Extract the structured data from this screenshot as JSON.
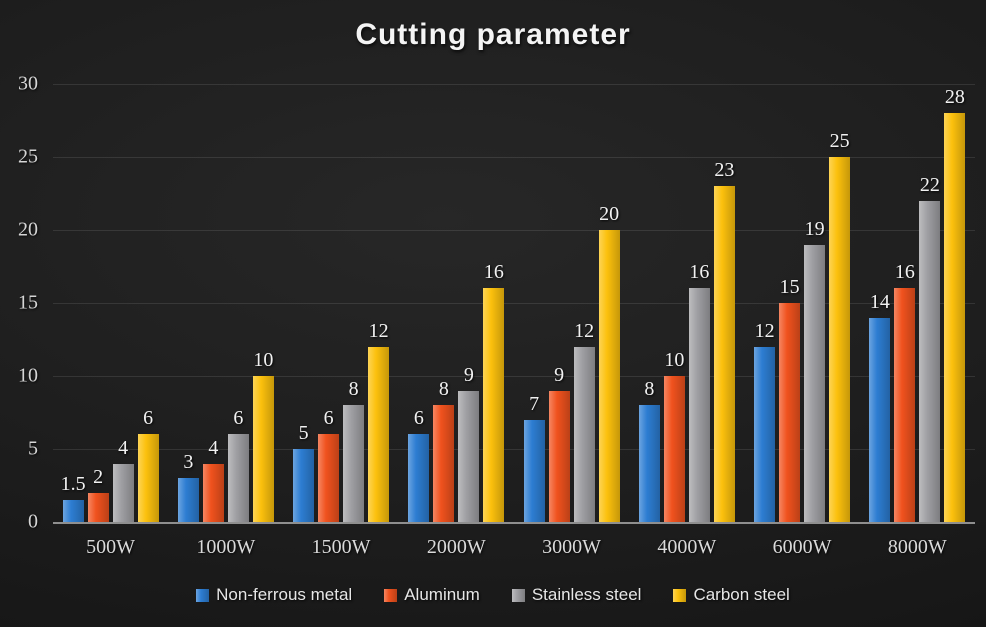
{
  "title": "Cutting parameter",
  "chart_data": {
    "type": "bar",
    "title": "Cutting parameter",
    "categories": [
      "500W",
      "1000W",
      "1500W",
      "2000W",
      "3000W",
      "4000W",
      "6000W",
      "8000W"
    ],
    "series": [
      {
        "name": "Non-ferrous metal",
        "color": "#2d7dd2",
        "values": [
          1.5,
          3,
          5,
          6,
          7,
          8,
          12,
          14
        ]
      },
      {
        "name": "Aluminum",
        "color": "#f0521e",
        "values": [
          2,
          4,
          6,
          8,
          9,
          10,
          15,
          16
        ]
      },
      {
        "name": "Stainless steel",
        "color": "#a0a0a4",
        "values": [
          4,
          6,
          8,
          9,
          12,
          16,
          19,
          22
        ]
      },
      {
        "name": "Carbon steel",
        "color": "#fcc10d",
        "values": [
          6,
          10,
          12,
          16,
          20,
          23,
          25,
          28
        ]
      }
    ],
    "xlabel": "",
    "ylabel": "",
    "ylim": [
      0,
      30
    ],
    "ytick_step": 5,
    "yticks": [
      0,
      5,
      10,
      15,
      20,
      25,
      30
    ],
    "grid": true,
    "legend_position": "bottom",
    "data_labels": true
  }
}
